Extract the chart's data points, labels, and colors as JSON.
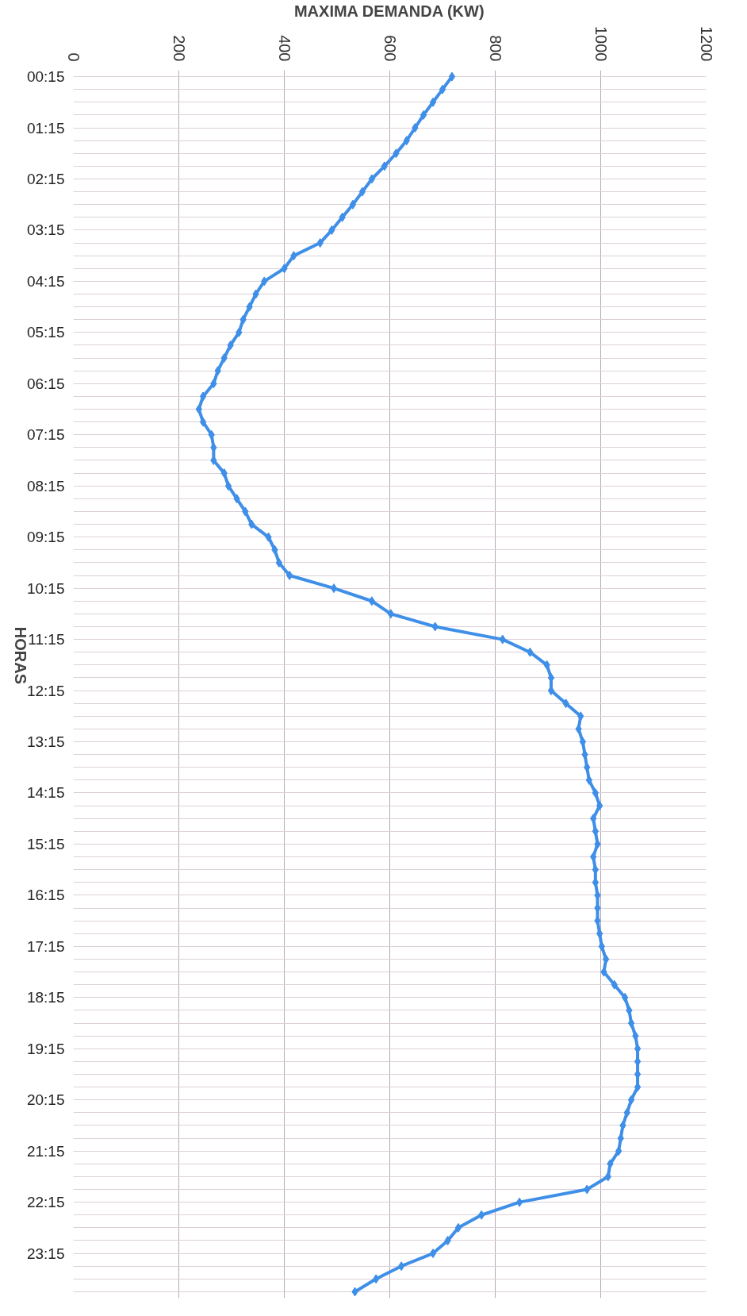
{
  "chart_data": {
    "type": "line",
    "orientation": "horizontal",
    "xlabel": "MAXIMA DEMANDA (KW)",
    "ylabel": "HORAS",
    "categories": [
      "00:15",
      null,
      null,
      null,
      "01:15",
      null,
      null,
      null,
      "02:15",
      null,
      null,
      null,
      "03:15",
      null,
      null,
      null,
      "04:15",
      null,
      null,
      null,
      "05:15",
      null,
      null,
      null,
      "06:15",
      null,
      null,
      null,
      "07:15",
      null,
      null,
      null,
      "08:15",
      null,
      null,
      null,
      "09:15",
      null,
      null,
      null,
      "10:15",
      null,
      null,
      null,
      "11:15",
      null,
      null,
      null,
      "12:15",
      null,
      null,
      null,
      "13:15",
      null,
      null,
      null,
      "14:15",
      null,
      null,
      null,
      "15:15",
      null,
      null,
      null,
      "16:15",
      null,
      null,
      null,
      "17:15",
      null,
      null,
      null,
      "18:15",
      null,
      null,
      null,
      "19:15",
      null,
      null,
      null,
      "20:15",
      null,
      null,
      null,
      "21:15",
      null,
      null,
      null,
      "22:15",
      null,
      null,
      null,
      "23:15",
      null,
      null,
      null
    ],
    "values": [
      718,
      700,
      682,
      664,
      648,
      632,
      612,
      590,
      566,
      548,
      530,
      510,
      490,
      468,
      418,
      400,
      362,
      346,
      334,
      322,
      314,
      298,
      286,
      274,
      266,
      246,
      238,
      246,
      262,
      266,
      266,
      286,
      294,
      310,
      326,
      338,
      370,
      382,
      390,
      410,
      494,
      566,
      602,
      686,
      814,
      866,
      898,
      906,
      906,
      934,
      962,
      958,
      966,
      970,
      974,
      978,
      990,
      998,
      986,
      990,
      994,
      986,
      990,
      990,
      994,
      994,
      994,
      998,
      1002,
      1010,
      1006,
      1026,
      1046,
      1054,
      1058,
      1066,
      1070,
      1070,
      1070,
      1070,
      1058,
      1050,
      1042,
      1038,
      1034,
      1018,
      1014,
      974,
      846,
      774,
      730,
      710,
      682,
      622,
      574,
      534
    ],
    "color": "#3f8fe8",
    "marker": "diamond",
    "line_style": "solid",
    "grid": true,
    "xlim": [
      0,
      1200
    ],
    "xticks": [
      0,
      200,
      400,
      600,
      800,
      1000,
      1200
    ]
  }
}
